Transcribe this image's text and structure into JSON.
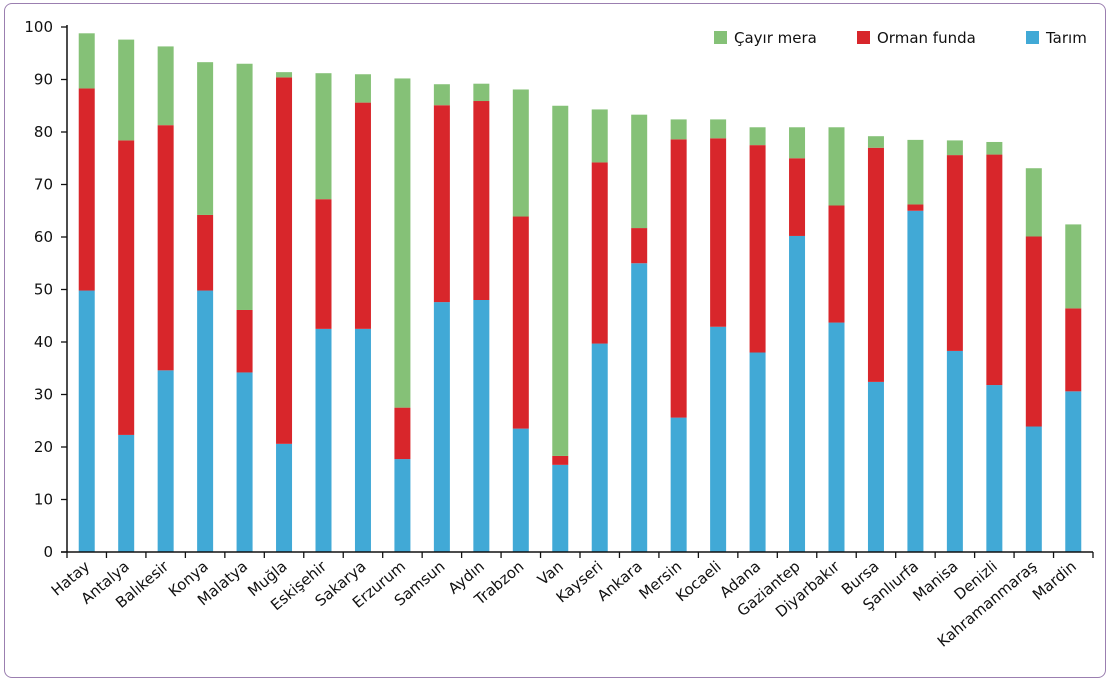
{
  "chart_data": {
    "type": "bar",
    "stacked": true,
    "categories": [
      "Hatay",
      "Antalya",
      "Balıkesir",
      "Konya",
      "Malatya",
      "Muğla",
      "Eskişehir",
      "Sakarya",
      "Erzurum",
      "Samsun",
      "Aydın",
      "Trabzon",
      "Van",
      "Kayseri",
      "Ankara",
      "Mersin",
      "Kocaeli",
      "Adana",
      "Gaziantep",
      "Diyarbakır",
      "Bursa",
      "Şanlıurfa",
      "Manisa",
      "Denizli",
      "Kahramanmaraş",
      "Mardin"
    ],
    "series": [
      {
        "name": "Tarım",
        "color": "#41a9d6",
        "values": [
          49.8,
          22.3,
          34.6,
          49.8,
          34.2,
          20.6,
          42.5,
          42.5,
          17.7,
          47.6,
          48.0,
          23.5,
          16.6,
          39.7,
          55.0,
          25.6,
          42.9,
          38.0,
          60.2,
          43.7,
          32.4,
          65.0,
          38.3,
          31.8,
          23.9,
          30.6
        ]
      },
      {
        "name": "Orman funda",
        "color": "#d8262b",
        "values": [
          38.5,
          56.1,
          46.7,
          14.4,
          11.9,
          69.8,
          24.7,
          43.1,
          9.8,
          37.5,
          37.9,
          40.4,
          1.7,
          34.5,
          6.7,
          53.0,
          35.9,
          39.5,
          14.8,
          22.3,
          44.6,
          1.2,
          37.3,
          43.9,
          36.2,
          15.8
        ]
      },
      {
        "name": "Çayır mera",
        "color": "#85c177",
        "values": [
          10.5,
          19.2,
          15.0,
          29.1,
          46.9,
          1.0,
          24.0,
          5.4,
          62.7,
          4.0,
          3.3,
          24.2,
          66.7,
          10.1,
          21.6,
          3.8,
          3.6,
          3.4,
          5.9,
          14.9,
          2.2,
          12.3,
          2.8,
          2.4,
          13.0,
          16.0
        ]
      }
    ],
    "legend_order": [
      "Çayır mera",
      "Orman funda",
      "Tarım"
    ],
    "legend_position": "top-right",
    "yticks": [
      "0",
      "10",
      "20",
      "30",
      "40",
      "50",
      "60",
      "70",
      "80",
      "90",
      "100"
    ],
    "ylim": [
      0,
      100
    ],
    "grid": false
  }
}
